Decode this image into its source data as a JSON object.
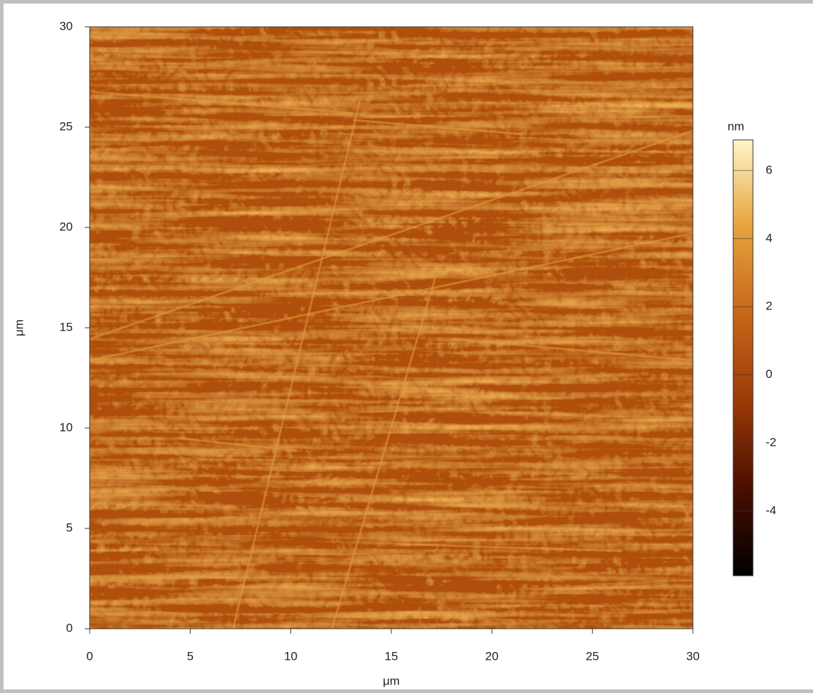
{
  "chart_data": {
    "type": "image",
    "xlabel": "μm",
    "ylabel": "μm",
    "xlim": [
      0,
      30
    ],
    "xticks": [
      0,
      5,
      10,
      15,
      20,
      25,
      30
    ],
    "ylim": [
      0,
      30
    ],
    "yticks": [
      0,
      5,
      10,
      15,
      20,
      25,
      30
    ],
    "colorbar": {
      "label": "nm",
      "lim": [
        -5.9,
        6.9
      ],
      "ticks": [
        -4,
        -2,
        0,
        2,
        4,
        6
      ],
      "colormap": [
        "#000000",
        "#4a0e00",
        "#9a3a06",
        "#c8661a",
        "#e6a23c",
        "#fff6c8"
      ]
    }
  }
}
